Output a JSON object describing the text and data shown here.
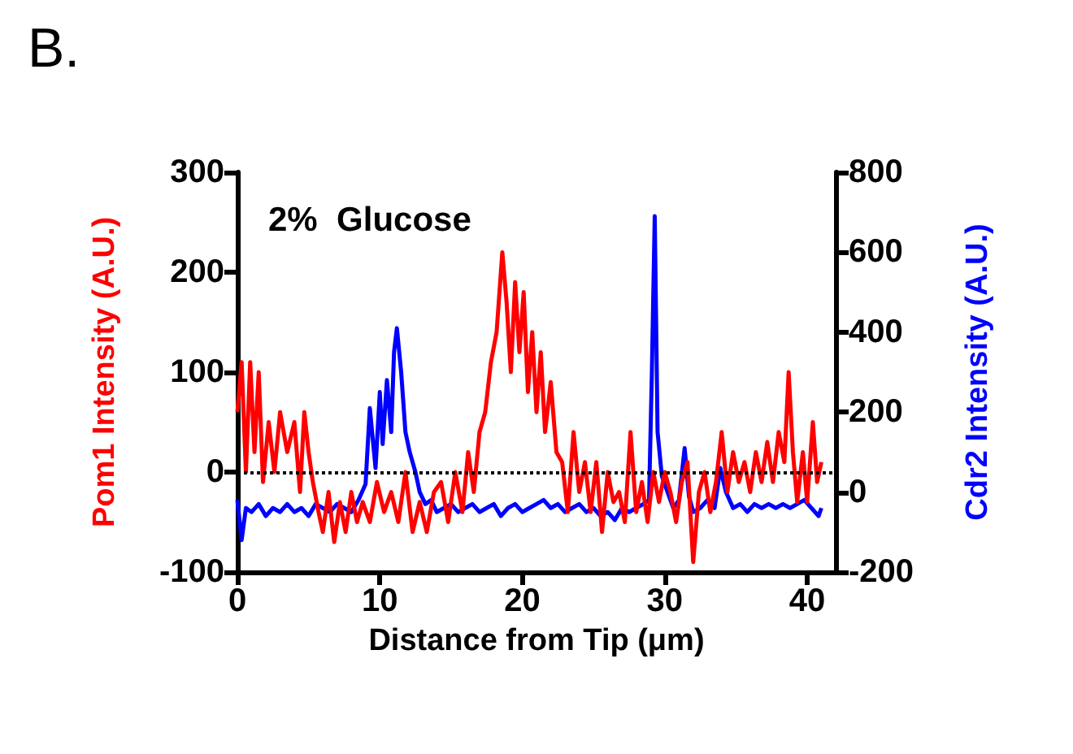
{
  "chart_data": {
    "type": "line",
    "title": "B.",
    "subtitle": "2%  Glucose",
    "xlabel": "Distance from Tip (μm)",
    "ylabel": "Pom1 Intensity (A.U.)",
    "y2label": "Cdr2 Intensity (A.U.)",
    "xlim": [
      0,
      42
    ],
    "xticks": [
      0,
      10,
      20,
      30,
      40
    ],
    "ylim": [
      -100,
      300
    ],
    "yticks": [
      -100,
      0,
      100,
      200,
      300
    ],
    "y2lim": [
      -200,
      800
    ],
    "y2ticks": [
      -200,
      0,
      200,
      400,
      600,
      800
    ],
    "grid": false,
    "marker": "none",
    "line_style": "solid",
    "ref_lines": [
      {
        "axis": "y",
        "value": 0,
        "line_style": "dotted",
        "color": "#000000"
      }
    ],
    "series": [
      {
        "color": "#0000ff",
        "axis": "y2",
        "x": [
          0,
          0.3,
          0.6,
          1,
          1.5,
          2,
          2.5,
          3,
          3.5,
          4,
          4.5,
          5,
          5.5,
          6,
          6.5,
          7,
          7.5,
          8,
          8.5,
          9,
          9.3,
          9.7,
          10,
          10.2,
          10.5,
          10.8,
          11,
          11.2,
          11.5,
          11.8,
          12.1,
          12.5,
          12.8,
          13.2,
          13.6,
          14,
          14.5,
          15,
          15.5,
          16,
          16.5,
          17,
          17.5,
          18,
          18.5,
          19,
          19.5,
          20,
          20.5,
          21,
          21.5,
          22,
          22.5,
          23,
          23.5,
          24,
          24.5,
          25,
          25.5,
          26,
          26.5,
          27,
          27.5,
          28,
          28.5,
          28.9,
          29.1,
          29.3,
          29.5,
          29.8,
          30.2,
          30.6,
          31,
          31.4,
          31.7,
          32,
          32.5,
          33,
          33.5,
          33.9,
          34.3,
          34.8,
          35.3,
          35.8,
          36.3,
          36.8,
          37.3,
          37.8,
          38.3,
          38.8,
          39.3,
          39.8,
          40.3,
          40.8,
          41
        ],
        "values": [
          -20,
          -120,
          -40,
          -50,
          -30,
          -60,
          -40,
          -50,
          -30,
          -50,
          -40,
          -60,
          -30,
          -40,
          -50,
          -30,
          -40,
          -50,
          -20,
          20,
          210,
          60,
          250,
          120,
          280,
          150,
          350,
          410,
          300,
          150,
          100,
          50,
          0,
          -30,
          -20,
          -50,
          -40,
          -30,
          -50,
          -40,
          -30,
          -50,
          -40,
          -30,
          -60,
          -40,
          -30,
          -50,
          -40,
          -30,
          -20,
          -40,
          -30,
          -50,
          -40,
          -30,
          -50,
          -40,
          -60,
          -50,
          -70,
          -40,
          -50,
          -40,
          -30,
          -20,
          300,
          690,
          150,
          40,
          0,
          -40,
          -20,
          110,
          -10,
          -50,
          -40,
          -20,
          -40,
          60,
          0,
          -40,
          -30,
          -50,
          -30,
          -40,
          -30,
          -40,
          -30,
          -40,
          -30,
          -20,
          -40,
          -60,
          -40
        ]
      },
      {
        "color": "#ff0000",
        "x": [
          0,
          0.3,
          0.6,
          0.9,
          1.2,
          1.5,
          1.8,
          2.2,
          2.6,
          3,
          3.5,
          4,
          4.4,
          4.7,
          5,
          5.3,
          5.7,
          6,
          6.4,
          6.8,
          7.2,
          7.6,
          8,
          8.4,
          8.8,
          9.3,
          9.8,
          10.3,
          10.8,
          11.3,
          11.8,
          12.3,
          12.8,
          13.3,
          13.8,
          14.3,
          14.8,
          15.3,
          15.8,
          16.2,
          16.6,
          17,
          17.4,
          17.8,
          18.2,
          18.6,
          18.9,
          19.2,
          19.5,
          19.8,
          20.1,
          20.4,
          20.7,
          21,
          21.3,
          21.6,
          22,
          22.4,
          22.8,
          23.2,
          23.6,
          24,
          24.4,
          24.8,
          25.2,
          25.6,
          26,
          26.4,
          26.8,
          27.2,
          27.6,
          28,
          28.4,
          28.8,
          29.2,
          29.6,
          30,
          30.4,
          30.8,
          31.2,
          31.6,
          32,
          32.4,
          32.8,
          33.2,
          33.6,
          34,
          34.4,
          34.8,
          35.2,
          35.6,
          36,
          36.4,
          36.8,
          37.2,
          37.6,
          38,
          38.4,
          38.7,
          39,
          39.3,
          39.7,
          40,
          40.4,
          40.7,
          41
        ],
        "values": [
          60,
          110,
          0,
          110,
          20,
          100,
          -10,
          50,
          0,
          60,
          20,
          50,
          -20,
          60,
          20,
          -10,
          -40,
          -60,
          -20,
          -70,
          -30,
          -60,
          -20,
          -50,
          -30,
          -50,
          -10,
          -40,
          -20,
          -50,
          0,
          -60,
          -30,
          -60,
          -20,
          -10,
          -50,
          0,
          -40,
          20,
          -20,
          40,
          60,
          110,
          140,
          220,
          170,
          100,
          190,
          120,
          180,
          80,
          140,
          60,
          120,
          40,
          90,
          20,
          10,
          -40,
          40,
          -20,
          10,
          -40,
          10,
          -60,
          0,
          -30,
          -20,
          -50,
          40,
          -40,
          -10,
          -50,
          0,
          -30,
          0,
          -20,
          -50,
          -10,
          10,
          -90,
          -20,
          0,
          -40,
          -10,
          40,
          -20,
          20,
          -10,
          10,
          -20,
          20,
          -10,
          30,
          -10,
          40,
          10,
          100,
          20,
          -30,
          20,
          -30,
          50,
          -10,
          10
        ]
      }
    ]
  }
}
